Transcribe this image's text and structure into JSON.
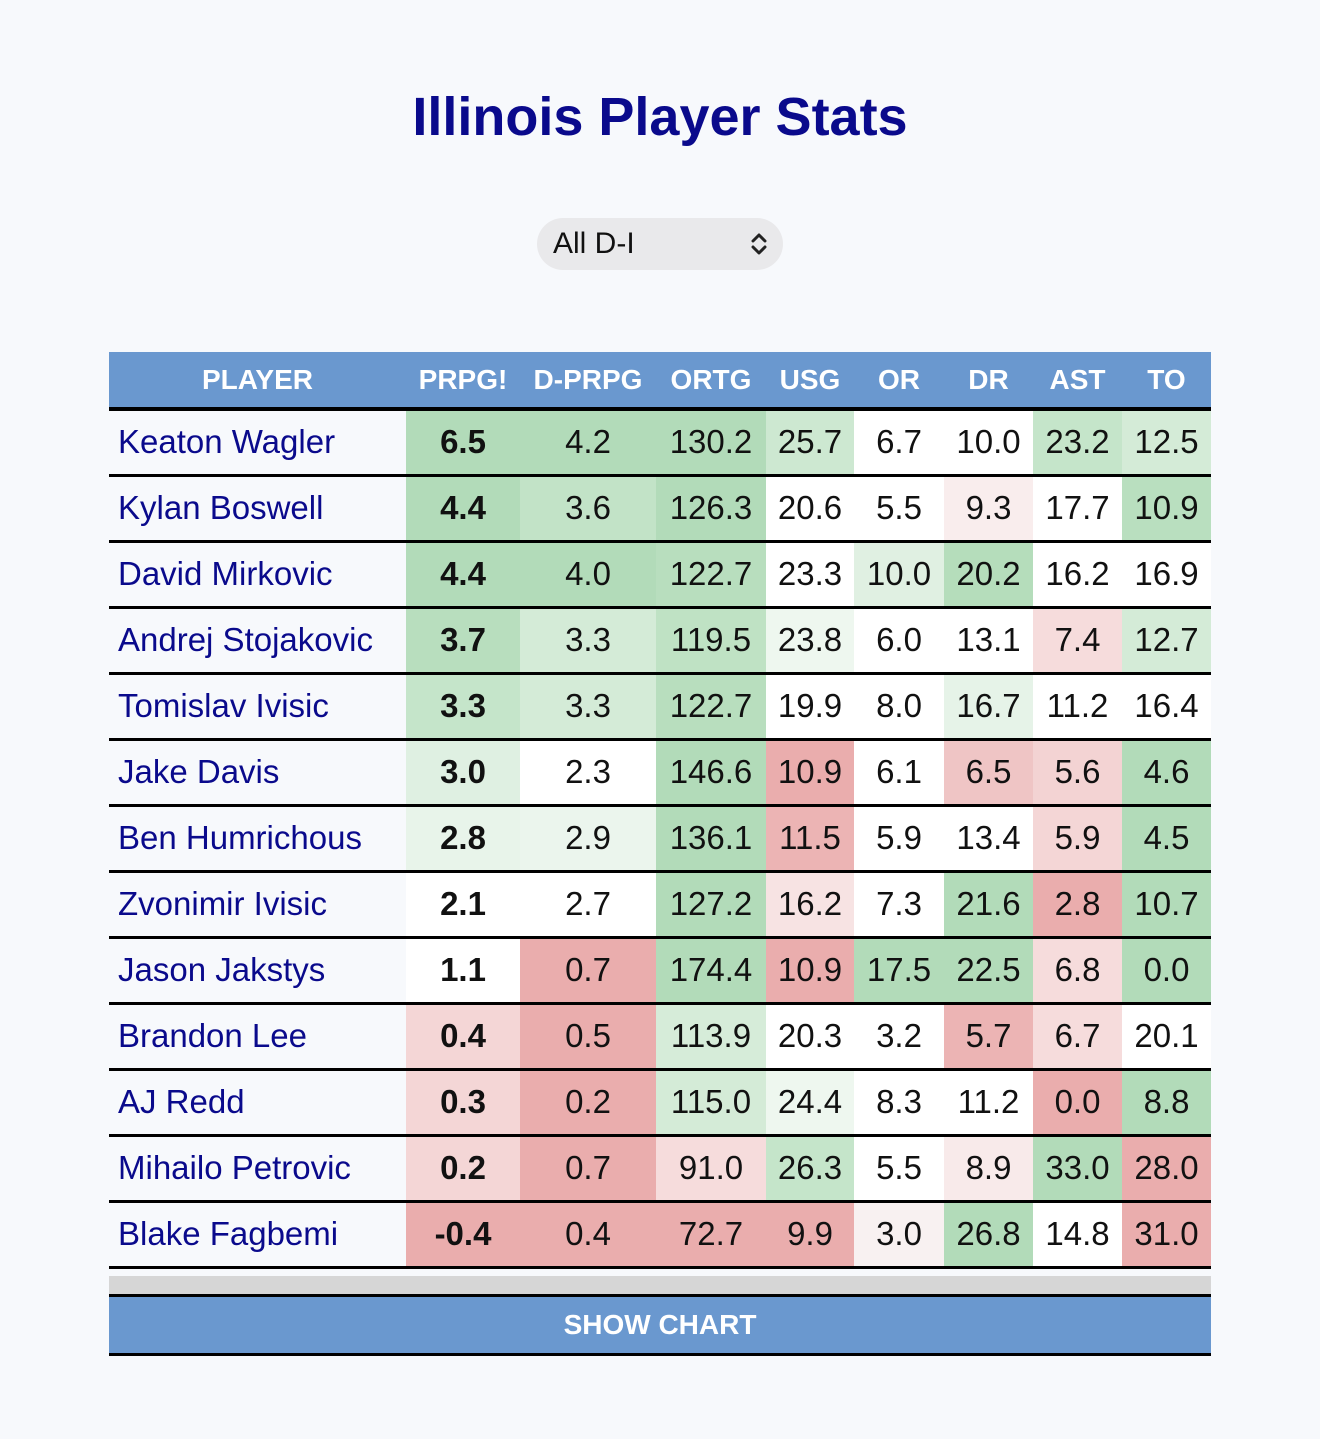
{
  "page": {
    "title": "Illinois Player Stats"
  },
  "filter": {
    "selected": "All D-I",
    "icon": "chevron-up-down-icon"
  },
  "table": {
    "columns": [
      {
        "key": "player",
        "label": "PLAYER"
      },
      {
        "key": "prpg",
        "label": "PRPG!"
      },
      {
        "key": "dprpg",
        "label": "D-PRPG"
      },
      {
        "key": "ortg",
        "label": "ORTG"
      },
      {
        "key": "usg",
        "label": "USG"
      },
      {
        "key": "or",
        "label": "OR"
      },
      {
        "key": "dr",
        "label": "DR"
      },
      {
        "key": "ast",
        "label": "AST"
      },
      {
        "key": "to",
        "label": "TO"
      }
    ],
    "rows": [
      {
        "player": "Keaton Wagler",
        "cells": [
          {
            "v": "6.5",
            "bg": "#b2dbb9"
          },
          {
            "v": "4.2",
            "bg": "#b2dbb9"
          },
          {
            "v": "130.2",
            "bg": "#b2dbb9"
          },
          {
            "v": "25.7",
            "bg": "#cde8d1"
          },
          {
            "v": "6.7",
            "bg": "#ffffff"
          },
          {
            "v": "10.0",
            "bg": "#ffffff"
          },
          {
            "v": "23.2",
            "bg": "#c5e5ca"
          },
          {
            "v": "12.5",
            "bg": "#d4ebd7"
          }
        ]
      },
      {
        "player": "Kylan Boswell",
        "cells": [
          {
            "v": "4.4",
            "bg": "#b2dbb9"
          },
          {
            "v": "3.6",
            "bg": "#c2e3c7"
          },
          {
            "v": "126.3",
            "bg": "#b2dbb9"
          },
          {
            "v": "20.6",
            "bg": "#ffffff"
          },
          {
            "v": "5.5",
            "bg": "#ffffff"
          },
          {
            "v": "9.3",
            "bg": "#f9eded"
          },
          {
            "v": "17.7",
            "bg": "#ffffff"
          },
          {
            "v": "10.9",
            "bg": "#b9dfbf"
          }
        ]
      },
      {
        "player": "David Mirkovic",
        "cells": [
          {
            "v": "4.4",
            "bg": "#b2dbb9"
          },
          {
            "v": "4.0",
            "bg": "#b2dbb9"
          },
          {
            "v": "122.7",
            "bg": "#b8debe"
          },
          {
            "v": "23.3",
            "bg": "#ffffff"
          },
          {
            "v": "10.0",
            "bg": "#e0f0e2"
          },
          {
            "v": "20.2",
            "bg": "#b5ddbb"
          },
          {
            "v": "16.2",
            "bg": "#ffffff"
          },
          {
            "v": "16.9",
            "bg": "#ffffff"
          }
        ]
      },
      {
        "player": "Andrej Stojakovic",
        "cells": [
          {
            "v": "3.7",
            "bg": "#b8debe"
          },
          {
            "v": "3.3",
            "bg": "#d4ebd7"
          },
          {
            "v": "119.5",
            "bg": "#bfe2c4"
          },
          {
            "v": "23.8",
            "bg": "#eef7ef"
          },
          {
            "v": "6.0",
            "bg": "#ffffff"
          },
          {
            "v": "13.1",
            "bg": "#ffffff"
          },
          {
            "v": "7.4",
            "bg": "#f6dcdc"
          },
          {
            "v": "12.7",
            "bg": "#d4ebd7"
          }
        ]
      },
      {
        "player": "Tomislav Ivisic",
        "cells": [
          {
            "v": "3.3",
            "bg": "#c5e5ca"
          },
          {
            "v": "3.3",
            "bg": "#d4ebd7"
          },
          {
            "v": "122.7",
            "bg": "#b8debe"
          },
          {
            "v": "19.9",
            "bg": "#ffffff"
          },
          {
            "v": "8.0",
            "bg": "#ffffff"
          },
          {
            "v": "16.7",
            "bg": "#e6f3e8"
          },
          {
            "v": "11.2",
            "bg": "#ffffff"
          },
          {
            "v": "16.4",
            "bg": "#ffffff"
          }
        ]
      },
      {
        "player": "Jake Davis",
        "cells": [
          {
            "v": "3.0",
            "bg": "#dff0e2"
          },
          {
            "v": "2.3",
            "bg": "#ffffff"
          },
          {
            "v": "146.6",
            "bg": "#b2dbb9"
          },
          {
            "v": "10.9",
            "bg": "#eaadad"
          },
          {
            "v": "6.1",
            "bg": "#ffffff"
          },
          {
            "v": "6.5",
            "bg": "#efc5c5"
          },
          {
            "v": "5.6",
            "bg": "#f3d3d3"
          },
          {
            "v": "4.6",
            "bg": "#b2dbb9"
          }
        ]
      },
      {
        "player": "Ben Humrichous",
        "cells": [
          {
            "v": "2.8",
            "bg": "#e8f4ea"
          },
          {
            "v": "2.9",
            "bg": "#ebf5ed"
          },
          {
            "v": "136.1",
            "bg": "#b2dbb9"
          },
          {
            "v": "11.5",
            "bg": "#ecb4b4"
          },
          {
            "v": "5.9",
            "bg": "#ffffff"
          },
          {
            "v": "13.4",
            "bg": "#ffffff"
          },
          {
            "v": "5.9",
            "bg": "#f4d6d6"
          },
          {
            "v": "4.5",
            "bg": "#b2dbb9"
          }
        ]
      },
      {
        "player": "Zvonimir Ivisic",
        "cells": [
          {
            "v": "2.1",
            "bg": "#ffffff"
          },
          {
            "v": "2.7",
            "bg": "#ffffff"
          },
          {
            "v": "127.2",
            "bg": "#b2dbb9"
          },
          {
            "v": "16.2",
            "bg": "#f7e3e3"
          },
          {
            "v": "7.3",
            "bg": "#ffffff"
          },
          {
            "v": "21.6",
            "bg": "#b2dbb9"
          },
          {
            "v": "2.8",
            "bg": "#eaadad"
          },
          {
            "v": "10.7",
            "bg": "#b2dbb9"
          }
        ]
      },
      {
        "player": "Jason Jakstys",
        "cells": [
          {
            "v": "1.1",
            "bg": "#ffffff"
          },
          {
            "v": "0.7",
            "bg": "#eaadad"
          },
          {
            "v": "174.4",
            "bg": "#b2dbb9"
          },
          {
            "v": "10.9",
            "bg": "#eaadad"
          },
          {
            "v": "17.5",
            "bg": "#b2dbb9"
          },
          {
            "v": "22.5",
            "bg": "#b2dbb9"
          },
          {
            "v": "6.8",
            "bg": "#f6dcdc"
          },
          {
            "v": "0.0",
            "bg": "#b2dbb9"
          }
        ]
      },
      {
        "player": "Brandon Lee",
        "cells": [
          {
            "v": "0.4",
            "bg": "#f4d6d6"
          },
          {
            "v": "0.5",
            "bg": "#eaadad"
          },
          {
            "v": "113.9",
            "bg": "#d6ecd9"
          },
          {
            "v": "20.3",
            "bg": "#ffffff"
          },
          {
            "v": "3.2",
            "bg": "#ffffff"
          },
          {
            "v": "5.7",
            "bg": "#ecb4b4"
          },
          {
            "v": "6.7",
            "bg": "#f6dcdc"
          },
          {
            "v": "20.1",
            "bg": "#ffffff"
          }
        ]
      },
      {
        "player": "AJ Redd",
        "cells": [
          {
            "v": "0.3",
            "bg": "#f4d6d6"
          },
          {
            "v": "0.2",
            "bg": "#eaadad"
          },
          {
            "v": "115.0",
            "bg": "#d4ebd7"
          },
          {
            "v": "24.4",
            "bg": "#eef7ef"
          },
          {
            "v": "8.3",
            "bg": "#ffffff"
          },
          {
            "v": "11.2",
            "bg": "#ffffff"
          },
          {
            "v": "0.0",
            "bg": "#eaadad"
          },
          {
            "v": "8.8",
            "bg": "#b2dbb9"
          }
        ]
      },
      {
        "player": "Mihailo Petrovic",
        "cells": [
          {
            "v": "0.2",
            "bg": "#f4d6d6"
          },
          {
            "v": "0.7",
            "bg": "#eaadad"
          },
          {
            "v": "91.0",
            "bg": "#f6dcdc"
          },
          {
            "v": "26.3",
            "bg": "#c5e5ca"
          },
          {
            "v": "5.5",
            "bg": "#ffffff"
          },
          {
            "v": "8.9",
            "bg": "#f8eaea"
          },
          {
            "v": "33.0",
            "bg": "#b2dbb9"
          },
          {
            "v": "28.0",
            "bg": "#eaadad"
          }
        ]
      },
      {
        "player": "Blake Fagbemi",
        "cells": [
          {
            "v": "-0.4",
            "bg": "#eaadad"
          },
          {
            "v": "0.4",
            "bg": "#eaadad"
          },
          {
            "v": "72.7",
            "bg": "#eaadad"
          },
          {
            "v": "9.9",
            "bg": "#eaadad"
          },
          {
            "v": "3.0",
            "bg": "#f8f1f1"
          },
          {
            "v": "26.8",
            "bg": "#b2dbb9"
          },
          {
            "v": "14.8",
            "bg": "#ffffff"
          },
          {
            "v": "31.0",
            "bg": "#eaadad"
          }
        ]
      }
    ]
  },
  "footer": {
    "show_chart_label": "SHOW CHART"
  }
}
